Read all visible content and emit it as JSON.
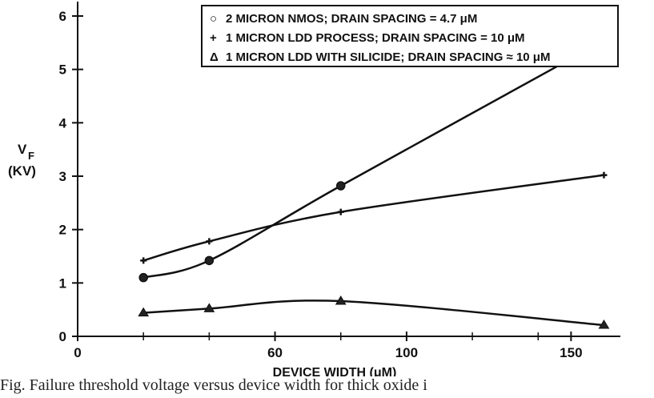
{
  "chart_data": {
    "type": "line",
    "title": "",
    "xlabel": "DEVICE WIDTH (μM)",
    "ylabel_main": "V",
    "ylabel_sub": "F",
    "ylabel_unit": "(KV)",
    "xlim": [
      0,
      165
    ],
    "ylim": [
      0,
      6.3
    ],
    "x_tick_values": [
      0,
      60,
      100,
      150
    ],
    "x_tick_labels": [
      "0",
      "60",
      "100",
      "150"
    ],
    "x_minor_ticks": [
      20,
      40,
      80,
      120,
      140
    ],
    "y_tick_values": [
      0,
      1,
      2,
      3,
      4,
      5,
      6
    ],
    "y_tick_labels": [
      "0",
      "1",
      "2",
      "3",
      "4",
      "5",
      "6"
    ],
    "grid": false,
    "legend_position": "top",
    "series": [
      {
        "name": "2 MICRON NMOS; DRAIN SPACING = 4.7 μM",
        "symbol": "○",
        "marker": "circle",
        "x": [
          20,
          40,
          80,
          150
        ],
        "y": [
          1.1,
          1.42,
          2.82,
          5.2
        ]
      },
      {
        "name": "1 MICRON LDD PROCESS; DRAIN SPACING = 10 μM",
        "symbol": "+",
        "marker": "plus",
        "x": [
          20,
          40,
          80,
          160
        ],
        "y": [
          1.42,
          1.78,
          2.33,
          3.02
        ]
      },
      {
        "name": "1 MICRON LDD WITH SILICIDE; DRAIN SPACING ≈ 10 μM",
        "symbol": "Δ",
        "marker": "triangle",
        "x": [
          20,
          40,
          80,
          160
        ],
        "y": [
          0.44,
          0.52,
          0.66,
          0.21
        ]
      }
    ]
  },
  "caption": "Fig. Failure threshold voltage versus device width for thick oxide i"
}
